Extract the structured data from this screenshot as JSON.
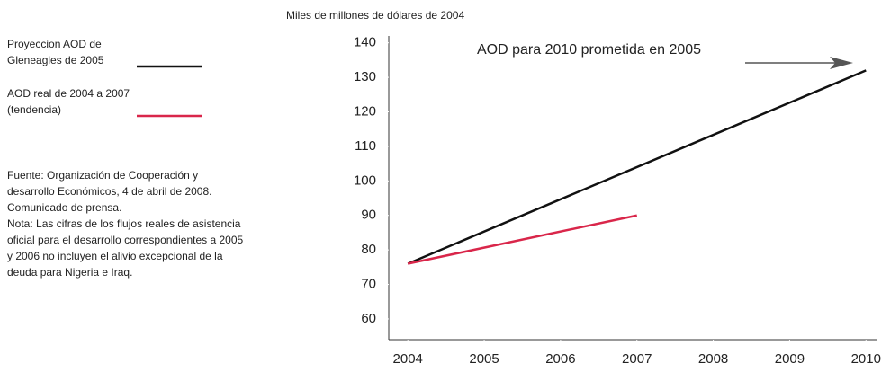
{
  "chart_data": {
    "type": "line",
    "ylabel": "Miles de millones de dólares de 2004",
    "annotation": "AOD para 2010 prometida en  2005",
    "source": "Fuente: Organización de Cooperación y desarrollo Económicos, 4 de abril de 2008. Comunicado de prensa.",
    "note": "Nota: Las cifras de los flujos reales de asistencia oficial para el desarrollo correspondientes a 2005 y 2006 no incluyen el alivio excepcional de la deuda para Nigeria e Iraq.",
    "series": [
      {
        "name": "Proyeccion AOD de Gleneagles de 2005",
        "color": "#111111",
        "x": [
          2004,
          2010
        ],
        "values": [
          76,
          132
        ]
      },
      {
        "name": "AOD real de 2004 a 2007 (tendencia)",
        "color": "#d9264a",
        "x": [
          2004,
          2007
        ],
        "values": [
          76,
          90
        ]
      }
    ],
    "xlim": [
      2003.75,
      2010.15
    ],
    "xticks": [
      2004,
      2005,
      2006,
      2007,
      2008,
      2009,
      2010
    ],
    "ylim": [
      54,
      142
    ],
    "yticks": [
      60,
      70,
      80,
      90,
      100,
      110,
      120,
      130,
      140
    ],
    "legend": "left"
  }
}
